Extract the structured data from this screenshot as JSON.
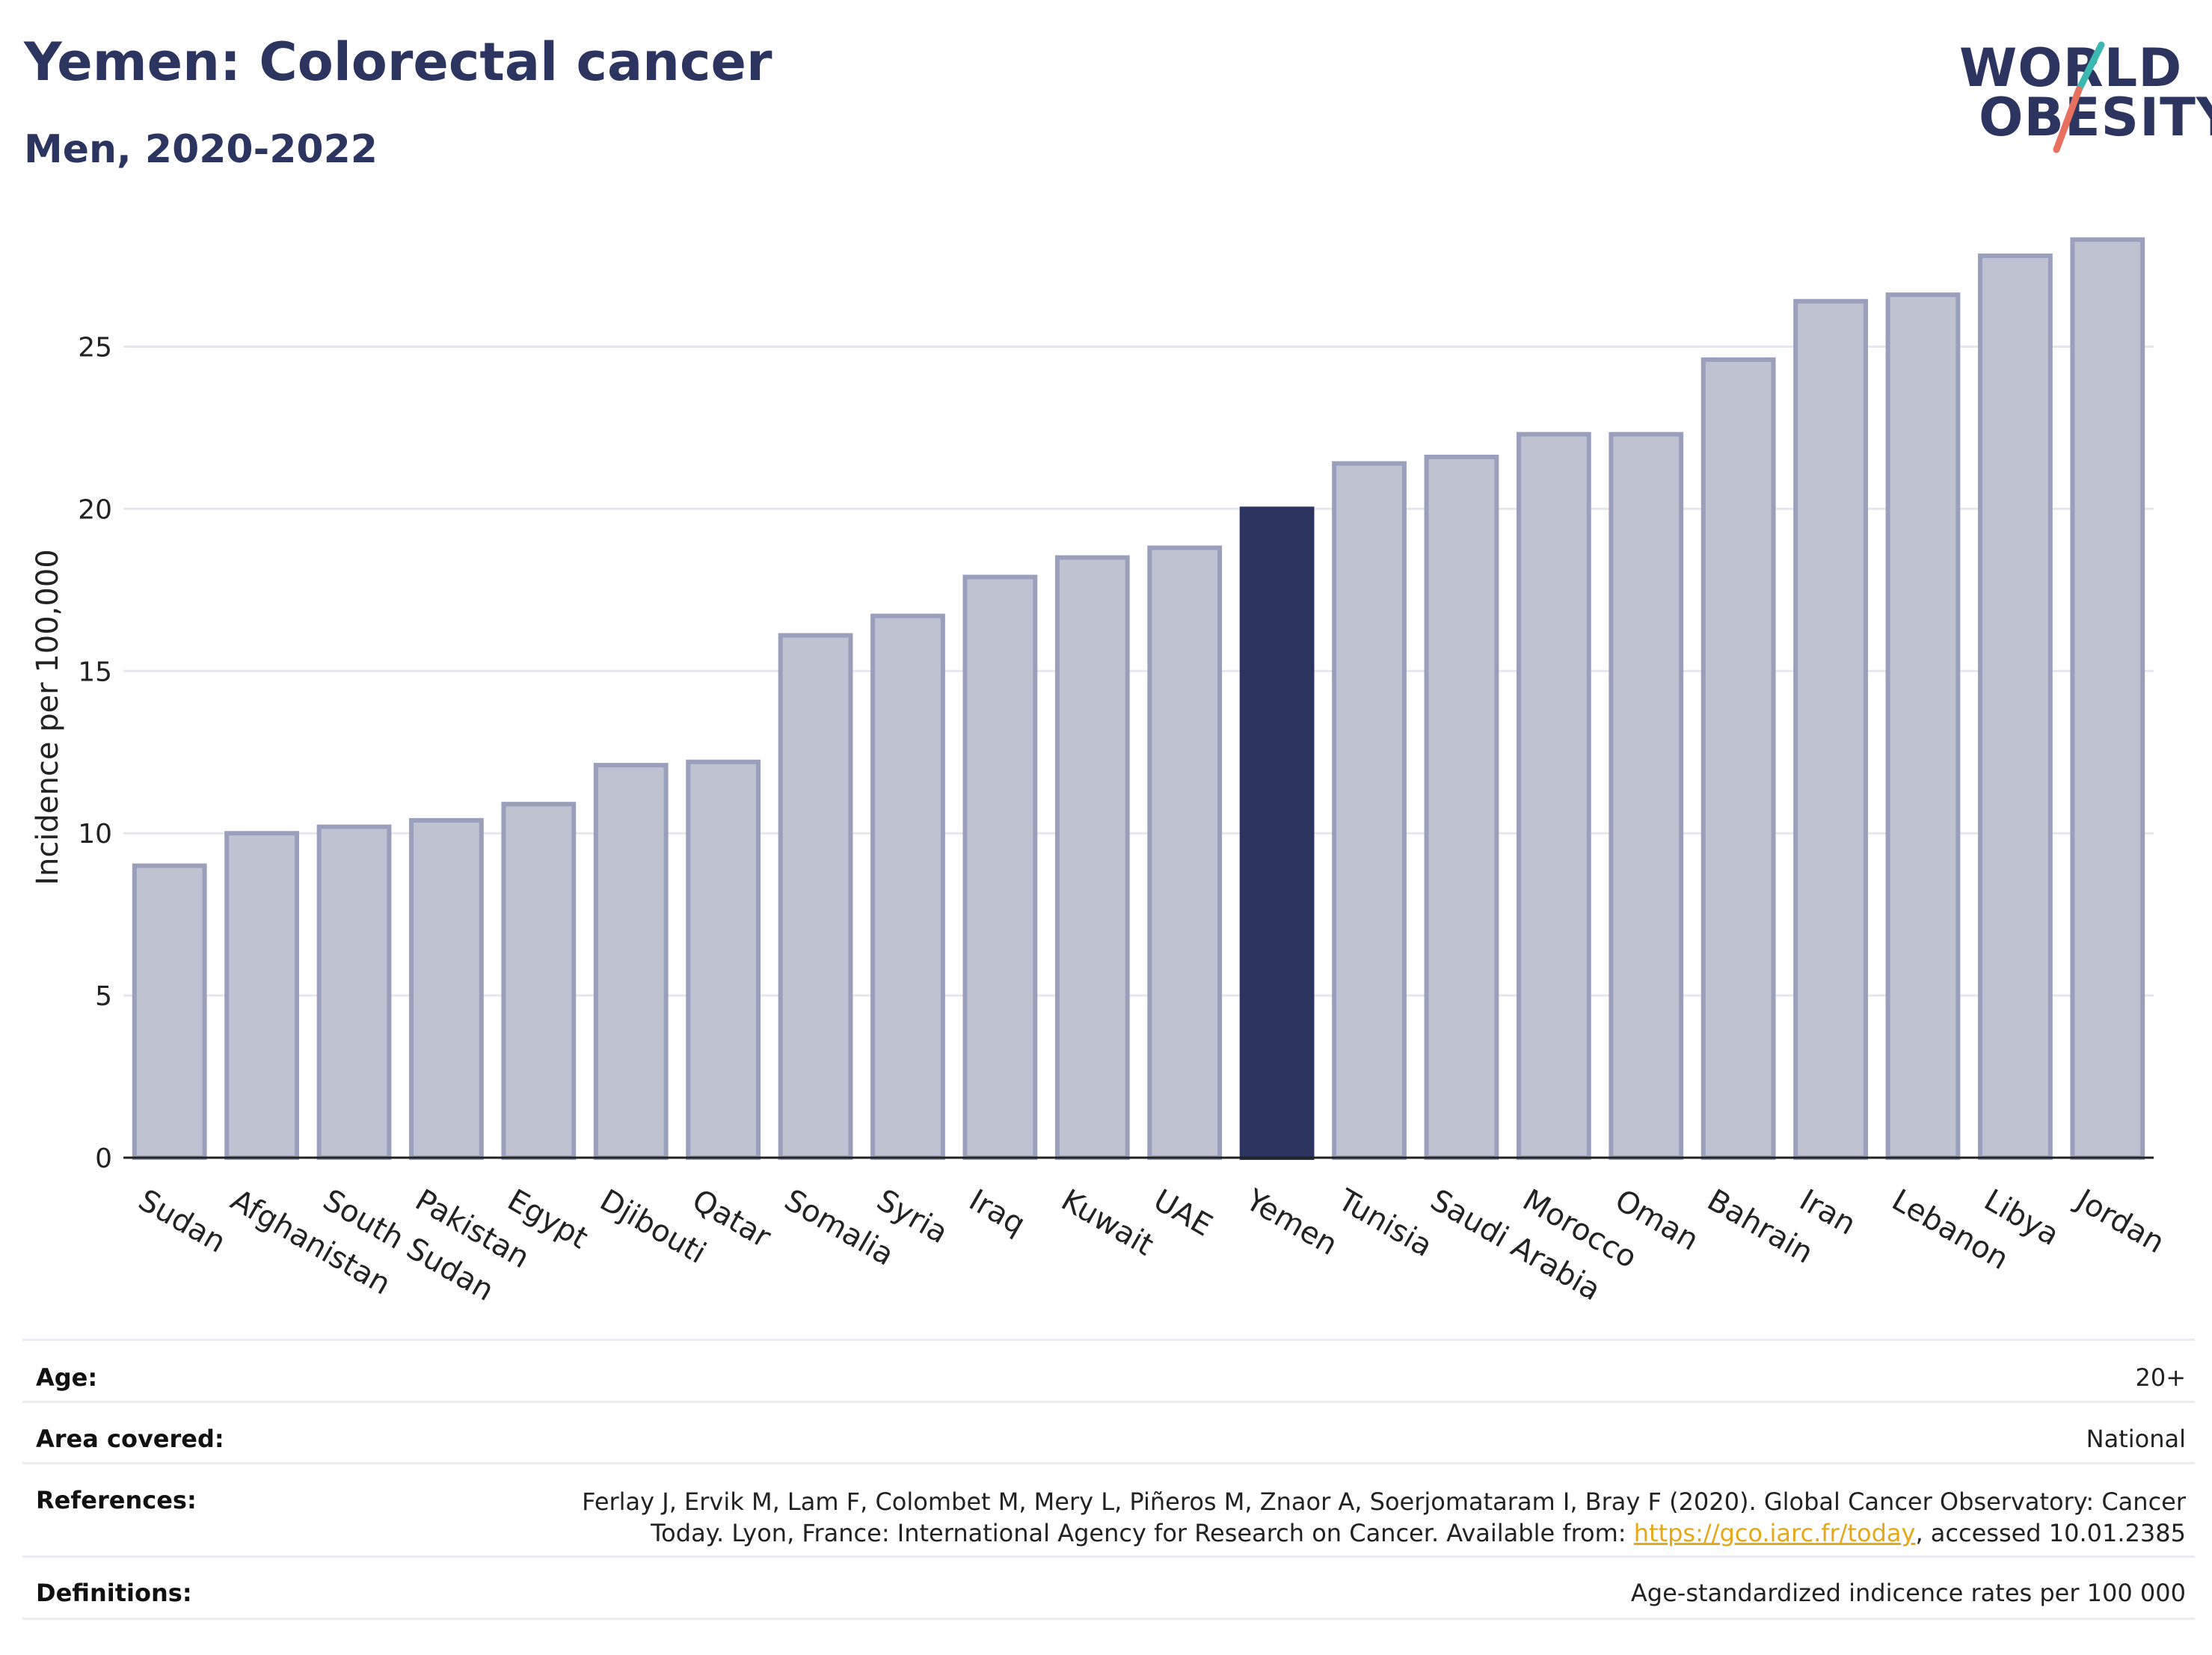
{
  "header": {
    "title": "Yemen: Colorectal cancer",
    "subtitle": "Men, 2020-2022"
  },
  "logo": {
    "line1": "WORLD",
    "line2": "OBESITY",
    "accent_teal": "#3bb8b0",
    "accent_coral": "#e8705f"
  },
  "chart_data": {
    "type": "bar",
    "ylabel": "Incidence per 100,000",
    "ylim": [
      0,
      29
    ],
    "yticks": [
      0,
      5,
      10,
      15,
      20,
      25
    ],
    "grid": true,
    "highlight": "Yemen",
    "colors": {
      "bar": "#bfc2d0",
      "bar_edge": "#9aa0bb",
      "highlight": "#2b3560"
    },
    "categories": [
      "Sudan",
      "Afghanistan",
      "South Sudan",
      "Pakistan",
      "Egypt",
      "Djibouti",
      "Qatar",
      "Somalia",
      "Syria",
      "Iraq",
      "Kuwait",
      "UAE",
      "Yemen",
      "Tunisia",
      "Saudi Arabia",
      "Morocco",
      "Oman",
      "Bahrain",
      "Iran",
      "Lebanon",
      "Libya",
      "Jordan"
    ],
    "values": [
      9.0,
      10.0,
      10.2,
      10.4,
      10.9,
      12.1,
      12.2,
      16.1,
      16.7,
      17.9,
      18.5,
      18.8,
      20.0,
      21.4,
      21.6,
      22.3,
      22.3,
      24.6,
      26.4,
      26.6,
      27.8,
      28.3
    ]
  },
  "meta": {
    "age_label": "Age:",
    "age_value": "20+",
    "area_label": "Area covered:",
    "area_value": "National",
    "references_label": "References:",
    "references_line1": "Ferlay J, Ervik M, Lam F, Colombet M, Mery L, Piñeros M, Znaor A, Soerjomataram I, Bray F (2020). Global Cancer Observatory: Cancer",
    "references_line2_pre": "Today. Lyon, France: International Agency for Research on Cancer. Available from: ",
    "references_link": "https://gco.iarc.fr/today",
    "references_line2_post": ", accessed 10.01.2385",
    "definitions_label": "Definitions:",
    "definitions_value": "Age-standardized indicence rates per 100 000"
  }
}
